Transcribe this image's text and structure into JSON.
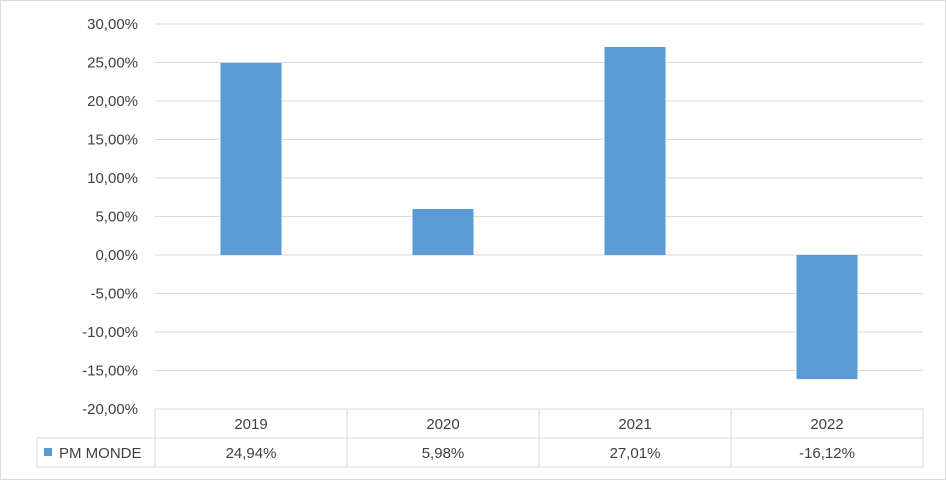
{
  "chart_data": {
    "type": "bar",
    "title": "",
    "xlabel": "",
    "ylabel": "",
    "categories": [
      "2019",
      "2020",
      "2021",
      "2022"
    ],
    "series": [
      {
        "name": "PM MONDE",
        "values": [
          24.94,
          5.98,
          27.01,
          -16.12
        ],
        "color": "#5b9bd5"
      }
    ],
    "data_labels": [
      "24,94%",
      "5,98%",
      "27,01%",
      "-16,12%"
    ],
    "ylim": [
      -20,
      30
    ],
    "ytick_step": 5,
    "ytick_labels": [
      "30,00%",
      "25,00%",
      "20,00%",
      "15,00%",
      "10,00%",
      "5,00%",
      "0,00%",
      "-5,00%",
      "-10,00%",
      "-15,00%",
      "-20,00%"
    ],
    "grid": true,
    "legend": "in data table",
    "data_table": true,
    "gridline_color": "#d9d9d9"
  }
}
